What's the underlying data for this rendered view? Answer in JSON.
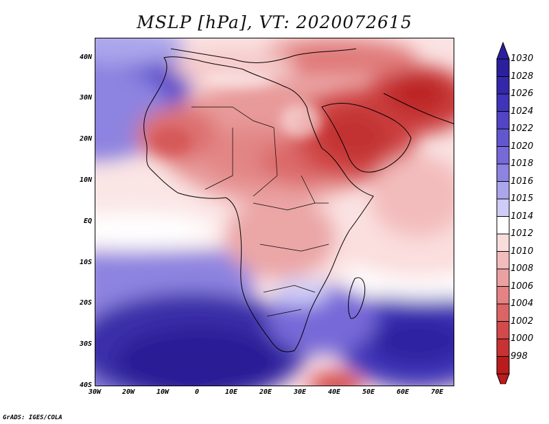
{
  "title": "MSLP [hPa], VT: 2020072615",
  "lat_labels": [
    "40N",
    "30N",
    "20N",
    "10N",
    "EQ",
    "10S",
    "20S",
    "30S",
    "40S"
  ],
  "lon_labels": [
    "30W",
    "20W",
    "10W",
    "0",
    "10E",
    "20E",
    "30E",
    "40E",
    "50E",
    "60E",
    "70E"
  ],
  "colorbar": {
    "levels": [
      "1030",
      "1028",
      "1026",
      "1024",
      "1022",
      "1020",
      "1018",
      "1016",
      "1015",
      "1014",
      "1012",
      "1010",
      "1008",
      "1006",
      "1004",
      "1002",
      "1000",
      "998"
    ],
    "colors": [
      "#2b1f9e",
      "#3527aa",
      "#4034b8",
      "#5244c4",
      "#6357cf",
      "#7769d8",
      "#8d83e0",
      "#aba6ec",
      "#cfcdf7",
      "#ffffff",
      "#f9dcdc",
      "#f3bcbc",
      "#eba1a1",
      "#e38383",
      "#db6565",
      "#d34a4a",
      "#c93232",
      "#b81c1c"
    ]
  },
  "credit": "GrADS: IGES/COLA"
}
